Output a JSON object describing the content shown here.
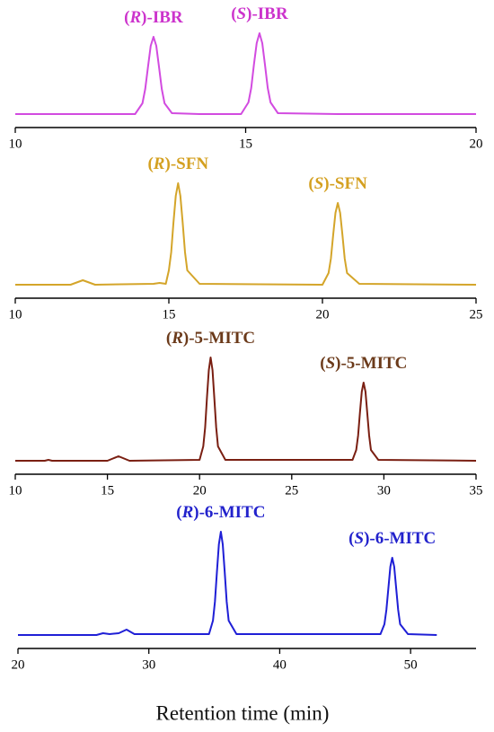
{
  "x_label": "Retention time (min)",
  "chart_data": [
    {
      "type": "line",
      "annotations": [
        "(R)-IBR",
        "(S)-IBR"
      ],
      "annotation_color": "#cc33cc",
      "xlim": [
        10,
        20
      ],
      "xticks": [
        10,
        15,
        20
      ],
      "ylim": [
        -15,
        120
      ],
      "series": [
        {
          "color": "#d24be0",
          "x": [
            10,
            12,
            12.6,
            12.76,
            12.82,
            12.88,
            12.94,
            13.0,
            13.06,
            13.12,
            13.18,
            13.24,
            13.4,
            14,
            14.9,
            15.06,
            15.12,
            15.18,
            15.24,
            15.3,
            15.36,
            15.42,
            15.48,
            15.54,
            15.7,
            17,
            20
          ],
          "values": [
            0,
            0,
            0,
            12,
            28,
            52,
            76,
            86,
            76,
            52,
            28,
            12,
            1,
            0,
            0,
            13,
            29,
            55,
            79,
            90,
            79,
            55,
            29,
            13,
            1,
            0,
            0
          ]
        }
      ]
    },
    {
      "type": "line",
      "annotations": [
        "(R)-SFN",
        "(S)-SFN"
      ],
      "annotation_color": "#d4a020",
      "xlim": [
        10,
        25
      ],
      "xticks": [
        10,
        15,
        20,
        25
      ],
      "ylim": [
        -15,
        120
      ],
      "series": [
        {
          "color": "#d4a52a",
          "x": [
            10,
            11.8,
            12.2,
            12.6,
            14.5,
            14.7,
            14.9,
            15.0,
            15.075,
            15.15,
            15.225,
            15.3,
            15.375,
            15.45,
            15.525,
            15.6,
            16,
            20,
            20.2,
            20.275,
            20.35,
            20.425,
            20.5,
            20.575,
            20.65,
            20.725,
            20.8,
            21.2,
            25
          ],
          "values": [
            0,
            0,
            5,
            0,
            1,
            2,
            1,
            16,
            36,
            69,
            99,
            113,
            99,
            69,
            36,
            16,
            1,
            0,
            13,
            29,
            56,
            80,
            91,
            80,
            56,
            29,
            13,
            1,
            0
          ]
        }
      ]
    },
    {
      "type": "line",
      "annotations": [
        "(R)-5-MITC",
        "(S)-5-MITC"
      ],
      "annotation_color": "#6b3a1a",
      "xlim": [
        10,
        35
      ],
      "xticks": [
        10,
        15,
        20,
        25,
        30,
        35
      ],
      "ylim": [
        -15,
        120
      ],
      "series": [
        {
          "color": "#7a1f12",
          "x": [
            10,
            11.6,
            11.8,
            12,
            15.0,
            15.6,
            16.2,
            20.0,
            20.2,
            20.3,
            20.4,
            20.5,
            20.6,
            20.7,
            20.8,
            20.9,
            21.0,
            21.4,
            28.3,
            28.5,
            28.6,
            28.7,
            28.8,
            28.9,
            29.0,
            29.1,
            29.2,
            29.3,
            29.7,
            35
          ],
          "values": [
            0,
            0,
            1,
            0,
            0,
            5,
            0,
            1,
            16,
            37,
            70,
            101,
            115,
            101,
            70,
            37,
            16,
            1,
            1,
            12,
            28,
            53,
            77,
            87,
            77,
            53,
            28,
            12,
            1,
            0
          ]
        }
      ]
    },
    {
      "type": "line",
      "annotations": [
        "(R)-6-MITC",
        "(S)-6-MITC"
      ],
      "annotation_color": "#2222cc",
      "xlim": [
        20,
        55
      ],
      "xticks": [
        20,
        30,
        40,
        50
      ],
      "ylim": [
        -15,
        120
      ],
      "series": [
        {
          "color": "#1f1fd6",
          "x": [
            20,
            26,
            26.5,
            27,
            27.7,
            28.3,
            28.9,
            34.6,
            34.9,
            35.05,
            35.2,
            35.35,
            35.5,
            35.65,
            35.8,
            35.95,
            36.1,
            36.7,
            47.7,
            48.0,
            48.15,
            48.3,
            48.45,
            48.6,
            48.75,
            48.9,
            49.05,
            49.2,
            49.8,
            52
          ],
          "values": [
            0,
            0,
            2,
            1,
            2,
            6,
            1,
            1,
            16,
            37,
            70,
            101,
            115,
            101,
            70,
            37,
            16,
            1,
            1,
            12,
            28,
            52,
            76,
            86,
            76,
            52,
            28,
            12,
            1,
            0
          ]
        }
      ]
    }
  ]
}
